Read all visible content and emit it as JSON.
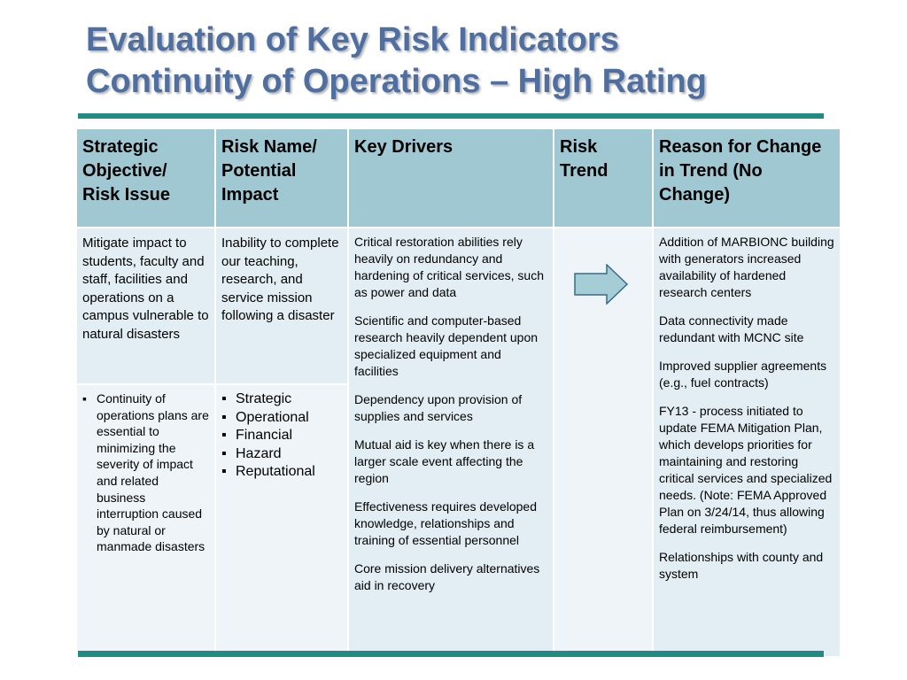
{
  "title": {
    "line1": "Evaluation of Key Risk Indicators",
    "line2": "Continuity of Operations – High Rating"
  },
  "table": {
    "headers": {
      "objective": "Strategic Objective/ Risk Issue",
      "risk_name": "Risk Name/ Potential Impact",
      "drivers": "Key Drivers",
      "trend": "Risk Trend",
      "reason": "Reason for Change in Trend (No Change)"
    },
    "objective_text": "Mitigate impact to students, faculty and staff, facilities and operations on a campus vulnerable to natural disasters",
    "risk_name_text": "Inability to complete our teaching, research, and service mission following a disaster",
    "objective_bullets": [
      "Continuity of operations plans are essential to minimizing the severity of impact and related business interruption caused by natural or manmade disasters"
    ],
    "impact_bullets": [
      "Strategic",
      "Operational",
      "Financial",
      "Hazard",
      "Reputational"
    ],
    "drivers": [
      "Critical restoration abilities rely heavily on redundancy and hardening of critical services, such as power and data",
      "Scientific and computer-based research heavily dependent upon specialized equipment and facilities",
      "Dependency upon provision of supplies and services",
      "Mutual aid is key when there is a larger scale event affecting the region",
      "Effectiveness requires developed knowledge, relationships and training of essential personnel",
      "Core mission delivery alternatives aid in recovery"
    ],
    "trend": {
      "icon": "right-arrow-icon",
      "direction": "No Change"
    },
    "reasons": [
      "Addition of MARBIONC building with generators increased availability of hardened research centers",
      "Data connectivity made redundant with MCNC site",
      "Improved supplier agreements (e.g., fuel contracts)",
      "FY13 - process initiated to update FEMA Mitigation Plan, which develops priorities for maintaining and restoring critical services and  specialized needs. (Note:  FEMA Approved Plan on 3/24/14, thus allowing federal reimbursement)",
      "Relationships with county and system"
    ]
  },
  "colors": {
    "title": "#4f6fa0",
    "rule": "#218a84",
    "header_bg": "#9fc8d3",
    "cell_light": "#e3eef4",
    "cell_lighter": "#eef4f8",
    "arrow_fill": "#a5cdd6"
  }
}
